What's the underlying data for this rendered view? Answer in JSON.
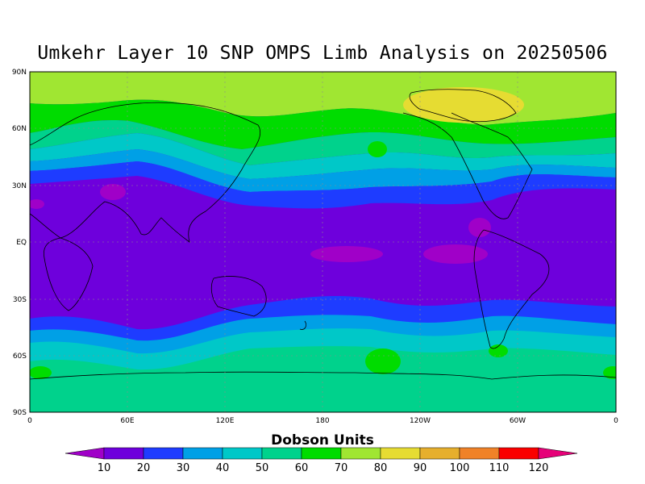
{
  "title": "Umkehr Layer 10 SNP OMPS Limb Analysis on 20250506",
  "lat_labels": [
    "90N",
    "60N",
    "30N",
    "EQ",
    "30S",
    "60S",
    "90S"
  ],
  "lon_labels": [
    "0",
    "60E",
    "120E",
    "180",
    "120W",
    "60W",
    "0"
  ],
  "colorbar": {
    "title": "Dobson Units",
    "levels": [
      "10",
      "20",
      "30",
      "40",
      "50",
      "60",
      "70",
      "80",
      "90",
      "100",
      "110",
      "120"
    ],
    "colors": [
      "#a000c8",
      "#6e00dc",
      "#1e3cff",
      "#00a0e6",
      "#00c8c8",
      "#00d28c",
      "#00dc00",
      "#a0e632",
      "#e6dc32",
      "#e6af2d",
      "#f08228",
      "#fa0000",
      "#e60078"
    ]
  }
}
